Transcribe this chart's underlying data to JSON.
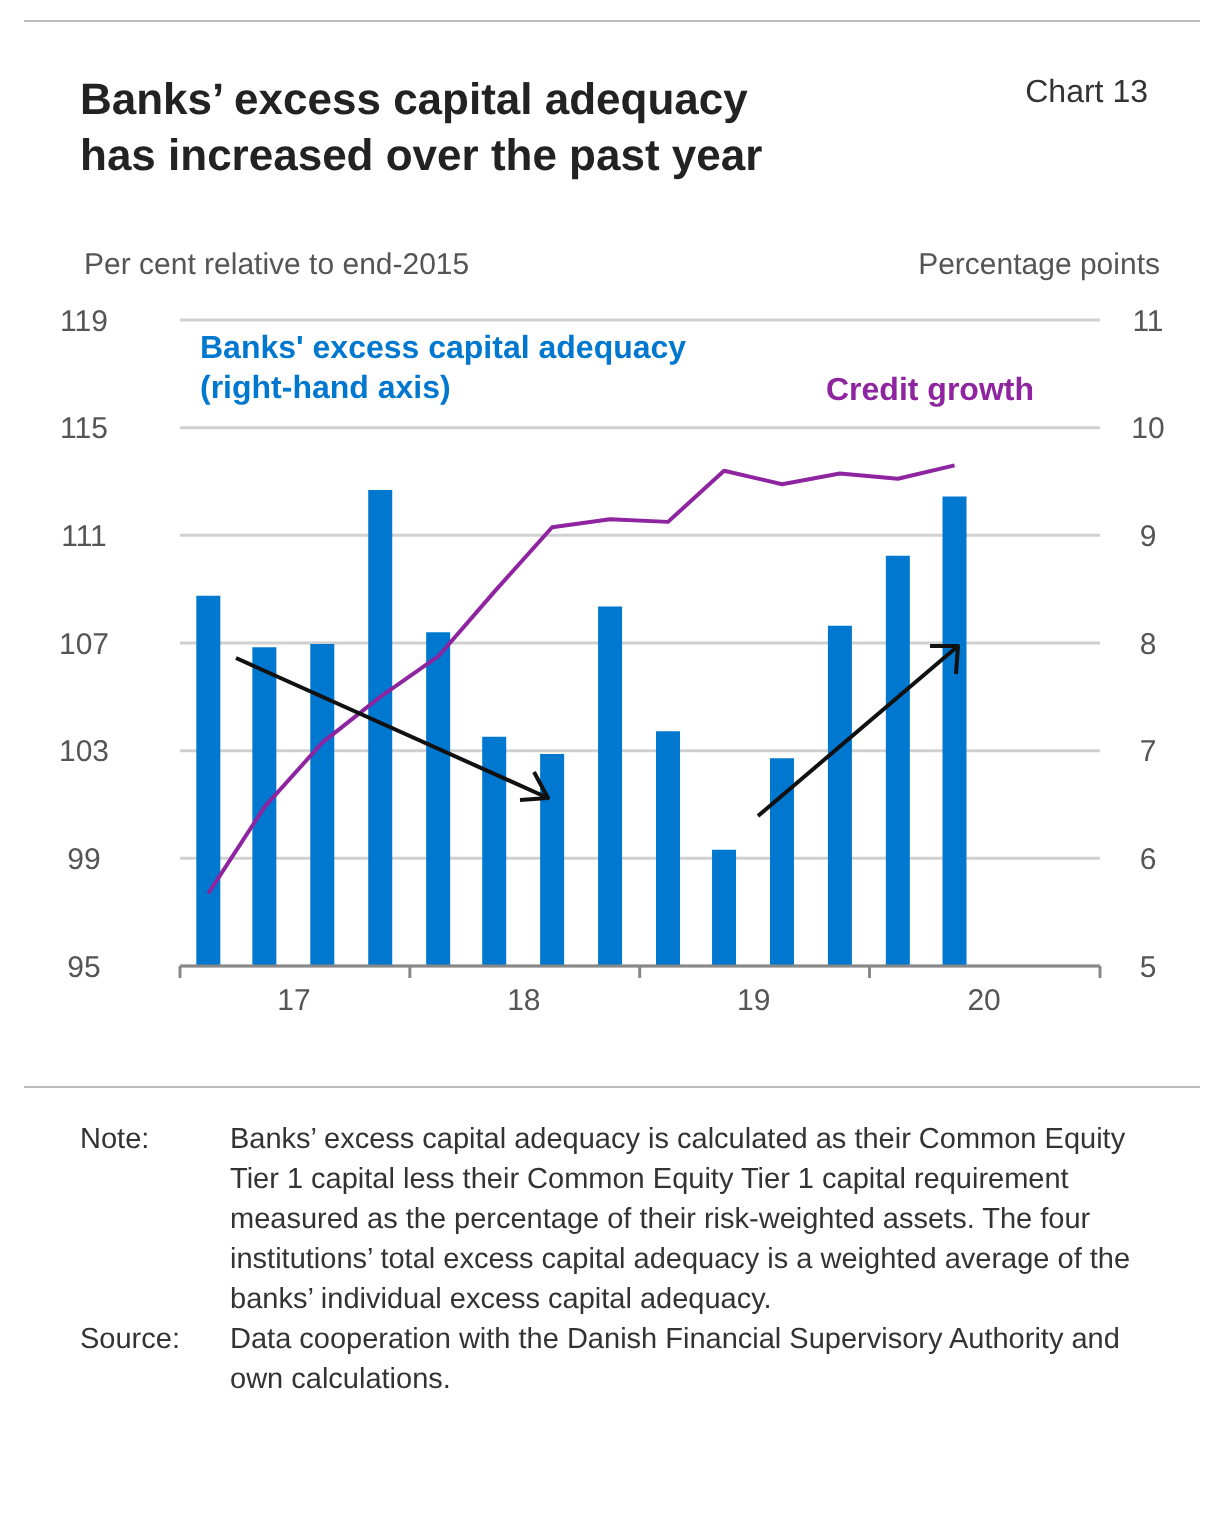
{
  "chart_data": {
    "type": "bar",
    "title": "Banks’ excess capital adequacy has increased over the past year",
    "ylabel": "Per cent relative to end-2015",
    "y2label": "Percentage points",
    "annotations": [
      "Chart 13",
      "Note: Banks’ excess capital adequacy is calculated as their Common Equity Tier 1 capital less their Common Equity Tier 1 capital requirement measured as the percentage of their risk-weighted assets. The four institutions’ total excess capital adequacy is a weighted average of the banks’ individual excess capital adequacy.",
      "Source: Data cooperation with the Danish Financial Supervisory Authority and own calculations."
    ],
    "x": [
      "2017-02-15",
      "2017-05-15",
      "2017-08-15",
      "2017-11-15",
      "2018-02-15",
      "2018-05-15",
      "2018-08-15",
      "2018-11-15",
      "2019-02-15",
      "2019-05-15",
      "2019-08-15",
      "2019-11-15",
      "2020-02-15",
      "2020-05-15"
    ],
    "series": [
      {
        "name": "Banks' excess capital adequacy (right-hand axis)",
        "axis": "y2",
        "color": "#0078d0",
        "values": [
          8.44,
          7.96,
          7.99,
          9.42,
          8.1,
          7.13,
          6.97,
          8.34,
          7.18,
          6.08,
          6.93,
          8.16,
          8.81,
          9.36
        ]
      },
      {
        "name": "Credit growth",
        "type": "line",
        "color": "#8e24a0",
        "values": [
          97.7,
          100.9,
          103.3,
          105.0,
          106.5,
          108.9,
          111.3,
          111.6,
          111.5,
          113.4,
          112.9,
          113.3,
          113.1,
          113.6
        ]
      }
    ],
    "xlim": [
      "2017-01-01",
      "2021-01-01"
    ],
    "xticks": [
      {
        "value": "2017-01-01",
        "label": null
      },
      {
        "value": "2017-07-01",
        "label": "17"
      },
      {
        "value": "2018-01-01",
        "label": null
      },
      {
        "value": "2018-07-01",
        "label": "18"
      },
      {
        "value": "2019-01-01",
        "label": null
      },
      {
        "value": "2019-07-01",
        "label": "19"
      },
      {
        "value": "2020-01-01",
        "label": null
      },
      {
        "value": "2020-07-01",
        "label": "20"
      },
      {
        "value": "2021-01-01",
        "label": null
      }
    ],
    "ylim": [
      95,
      119
    ],
    "yticks": [
      95,
      99,
      103,
      107,
      111,
      115,
      119
    ],
    "y2lim": [
      5,
      11
    ],
    "y2ticks": [
      5,
      6,
      7,
      8,
      9,
      10,
      11
    ],
    "grid": "y",
    "marker": "none",
    "line_style": "solid"
  }
}
